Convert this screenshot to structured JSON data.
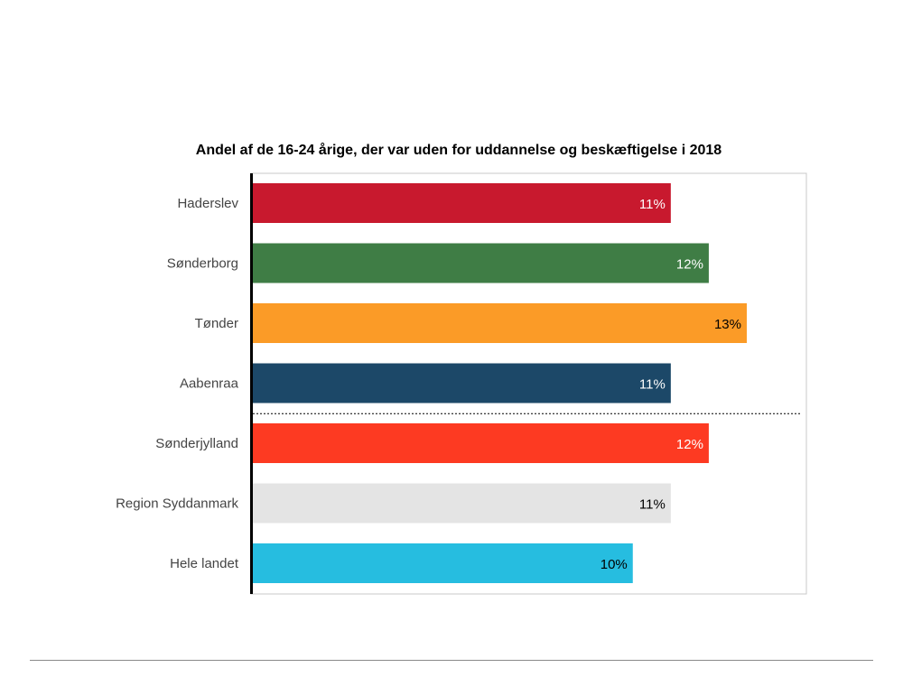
{
  "chart_data": {
    "type": "bar",
    "orientation": "horizontal",
    "title": "Andel af de 16-24 årige, der var uden for uddannelse og beskæftigelse i 2018",
    "categories": [
      "Haderslev",
      "Sønderborg",
      "Tønder",
      "Aabenraa",
      "Sønderjylland",
      "Region Syddanmark",
      "Hele landet"
    ],
    "values": [
      11,
      12,
      13,
      11,
      12,
      11,
      10
    ],
    "value_labels": [
      "11%",
      "12%",
      "13%",
      "11%",
      "12%",
      "11%",
      "10%"
    ],
    "colors": [
      "#c8192e",
      "#3f7d45",
      "#fb9b27",
      "#1c4868",
      "#fd3a22",
      "#e4e4e4",
      "#26bde0"
    ],
    "label_colors": [
      "#ffffff",
      "#ffffff",
      "#000000",
      "#ffffff",
      "#ffffff",
      "#000000",
      "#000000"
    ],
    "grid": false,
    "separator_after_category": "Aabenraa"
  }
}
